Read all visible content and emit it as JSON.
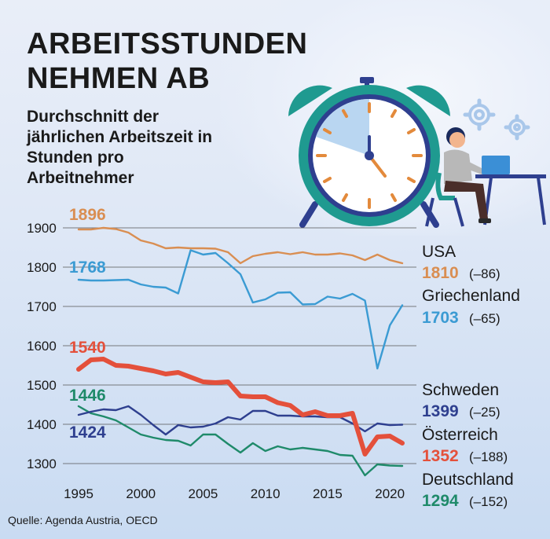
{
  "title_line1": "ARBEITSSTUNDEN",
  "title_line2": "NEHMEN AB",
  "subtitle": "Durchschnitt der jährlichen Arbeitszeit in Stunden pro Arbeitnehmer",
  "source": "Quelle: Agenda Austria, OECD",
  "illustration": {
    "icons": [
      "alarm-clock-icon",
      "gear-icon",
      "person-at-laptop-icon"
    ]
  },
  "chart_data": {
    "type": "line",
    "xlim": [
      1995,
      2021
    ],
    "ylim": [
      1270,
      1920
    ],
    "xticks": [
      1995,
      2000,
      2005,
      2010,
      2015,
      2020
    ],
    "xtick_labels": [
      "1995",
      "2000",
      "2005",
      "2010",
      "2015",
      "2020"
    ],
    "yticks": [
      1300,
      1400,
      1500,
      1600,
      1700,
      1800,
      1900
    ],
    "ytick_labels": [
      "1300",
      "1400",
      "1500",
      "1600",
      "1700",
      "1800",
      "1900"
    ],
    "grid": true,
    "series": [
      {
        "name": "USA",
        "color": "#d98e52",
        "start_label": "1896",
        "end_label": "1810",
        "change_label": "(–86)",
        "x": [
          1995,
          1996,
          1997,
          1998,
          1999,
          2000,
          2001,
          2002,
          2003,
          2004,
          2005,
          2006,
          2007,
          2008,
          2009,
          2010,
          2011,
          2012,
          2013,
          2014,
          2015,
          2016,
          2017,
          2018,
          2019,
          2020,
          2021
        ],
        "y": [
          1896,
          1896,
          1900,
          1897,
          1888,
          1868,
          1860,
          1848,
          1850,
          1848,
          1848,
          1847,
          1838,
          1810,
          1828,
          1834,
          1838,
          1833,
          1838,
          1832,
          1832,
          1835,
          1830,
          1818,
          1832,
          1818,
          1810
        ]
      },
      {
        "name": "Griechenland",
        "color": "#3b9bd3",
        "start_label": "1768",
        "end_label": "1703",
        "change_label": "(–65)",
        "x": [
          1995,
          1996,
          1997,
          1998,
          1999,
          2000,
          2001,
          2002,
          2003,
          2004,
          2005,
          2006,
          2007,
          2008,
          2009,
          2010,
          2011,
          2012,
          2013,
          2014,
          2015,
          2016,
          2017,
          2018,
          2019,
          2020,
          2021
        ],
        "y": [
          1768,
          1766,
          1766,
          1767,
          1768,
          1756,
          1750,
          1748,
          1733,
          1843,
          1832,
          1836,
          1810,
          1782,
          1710,
          1718,
          1735,
          1736,
          1705,
          1706,
          1725,
          1720,
          1732,
          1715,
          1542,
          1652,
          1703
        ]
      },
      {
        "name": "Schweden",
        "color": "#2e3f8f",
        "start_label": "1424",
        "end_label": "1399",
        "change_label": "(–25)",
        "x": [
          1995,
          1996,
          1997,
          1998,
          1999,
          2000,
          2001,
          2002,
          2003,
          2004,
          2005,
          2006,
          2007,
          2008,
          2009,
          2010,
          2011,
          2012,
          2013,
          2014,
          2015,
          2016,
          2017,
          2018,
          2019,
          2020,
          2021
        ],
        "y": [
          1424,
          1432,
          1438,
          1436,
          1446,
          1424,
          1398,
          1374,
          1398,
          1392,
          1394,
          1402,
          1418,
          1412,
          1434,
          1434,
          1422,
          1422,
          1420,
          1420,
          1418,
          1418,
          1402,
          1382,
          1402,
          1398,
          1399
        ]
      },
      {
        "name": "Österreich",
        "color": "#e4503b",
        "start_label": "1540",
        "end_label": "1352",
        "change_label": "(–188)",
        "bold": true,
        "x": [
          1995,
          1996,
          1997,
          1998,
          1999,
          2000,
          2001,
          2002,
          2003,
          2004,
          2005,
          2006,
          2007,
          2008,
          2009,
          2010,
          2011,
          2012,
          2013,
          2014,
          2015,
          2016,
          2017,
          2018,
          2019,
          2020,
          2021
        ],
        "y": [
          1540,
          1564,
          1566,
          1550,
          1548,
          1542,
          1536,
          1528,
          1532,
          1520,
          1508,
          1506,
          1508,
          1472,
          1470,
          1470,
          1455,
          1448,
          1424,
          1432,
          1422,
          1422,
          1428,
          1324,
          1368,
          1370,
          1352
        ]
      },
      {
        "name": "Deutschland",
        "color": "#1f8a6a",
        "start_label": "1446",
        "end_label": "1294",
        "change_label": "(–152)",
        "x": [
          1995,
          1996,
          1997,
          1998,
          1999,
          2000,
          2001,
          2002,
          2003,
          2004,
          2005,
          2006,
          2007,
          2008,
          2009,
          2010,
          2011,
          2012,
          2013,
          2014,
          2015,
          2016,
          2017,
          2018,
          2019,
          2020,
          2021
        ],
        "y": [
          1446,
          1428,
          1420,
          1410,
          1392,
          1374,
          1366,
          1360,
          1358,
          1346,
          1374,
          1374,
          1350,
          1328,
          1352,
          1332,
          1344,
          1336,
          1340,
          1336,
          1332,
          1322,
          1320,
          1270,
          1298,
          1295,
          1294
        ]
      }
    ]
  }
}
